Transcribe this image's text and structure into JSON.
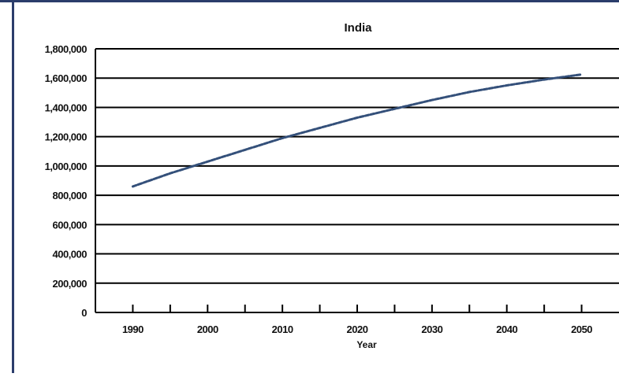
{
  "chart_data": {
    "type": "line",
    "title": "India",
    "xlabel": "Year",
    "ylabel": "",
    "x_ticks": [
      "1990",
      "2000",
      "2010",
      "2020",
      "2030",
      "2040",
      "2050"
    ],
    "y_ticks": [
      "0",
      "200,000",
      "400,000",
      "600,000",
      "800,000",
      "1,000,000",
      "1,200,000",
      "1,400,000",
      "1,600,000",
      "1,800,000"
    ],
    "xlim": [
      1985,
      2055
    ],
    "ylim": [
      0,
      1800000
    ],
    "grid": true,
    "legend": "none",
    "series": [
      {
        "x": [
          1990,
          1995,
          2000,
          2005,
          2010,
          2015,
          2020,
          2025,
          2030,
          2035,
          2040,
          2045,
          2050
        ],
        "y": [
          860000,
          950000,
          1030000,
          1110000,
          1190000,
          1260000,
          1330000,
          1390000,
          1450000,
          1505000,
          1550000,
          1590000,
          1625000
        ],
        "color": "#34507a",
        "style": "dashed"
      }
    ]
  },
  "colors": {
    "frame": "#2b3d6b",
    "line": "#34507a",
    "grid": "#000000"
  }
}
